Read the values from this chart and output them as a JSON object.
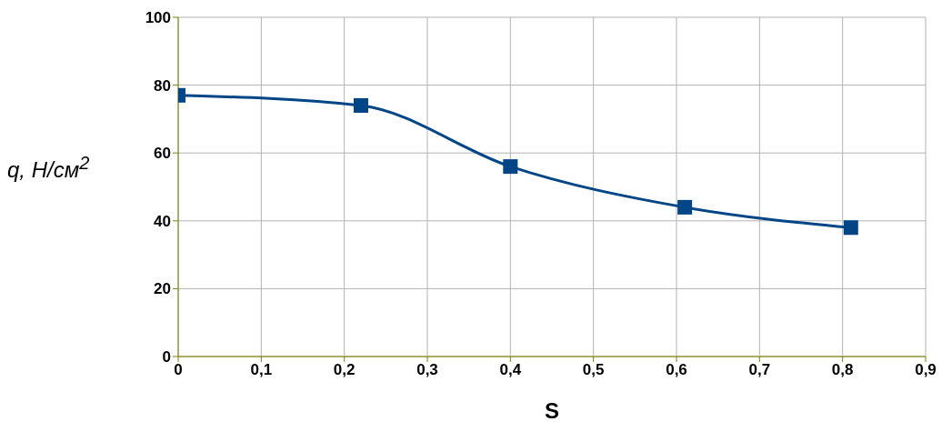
{
  "chart_data": {
    "type": "line",
    "xlabel": "S",
    "ylabel": "q, Н/см$^{2}$",
    "x": [
      0,
      0.22,
      0.4,
      0.61,
      0.81
    ],
    "series": [
      {
        "color": "#004586",
        "values": [
          77,
          74,
          56,
          44,
          38
        ]
      }
    ],
    "xlim": [
      0,
      0.9
    ],
    "xticks": [
      0,
      {
        "value": 0.1,
        "label": "0,1"
      },
      {
        "value": 0.2,
        "label": "0,2"
      },
      {
        "value": 0.3,
        "label": "0,3"
      },
      {
        "value": 0.4,
        "label": "0,4"
      },
      {
        "value": 0.5,
        "label": "0,5"
      },
      {
        "value": 0.6,
        "label": "0,6"
      },
      {
        "value": 0.7,
        "label": "0,7"
      },
      {
        "value": 0.8,
        "label": "0,8"
      },
      {
        "value": 0.9,
        "label": "0,9"
      }
    ],
    "ylim": [
      0,
      100
    ],
    "yticks": [
      0,
      20,
      40,
      60,
      80,
      100
    ],
    "grid": true,
    "legend": false,
    "marker": "square",
    "line_style": "solid"
  }
}
